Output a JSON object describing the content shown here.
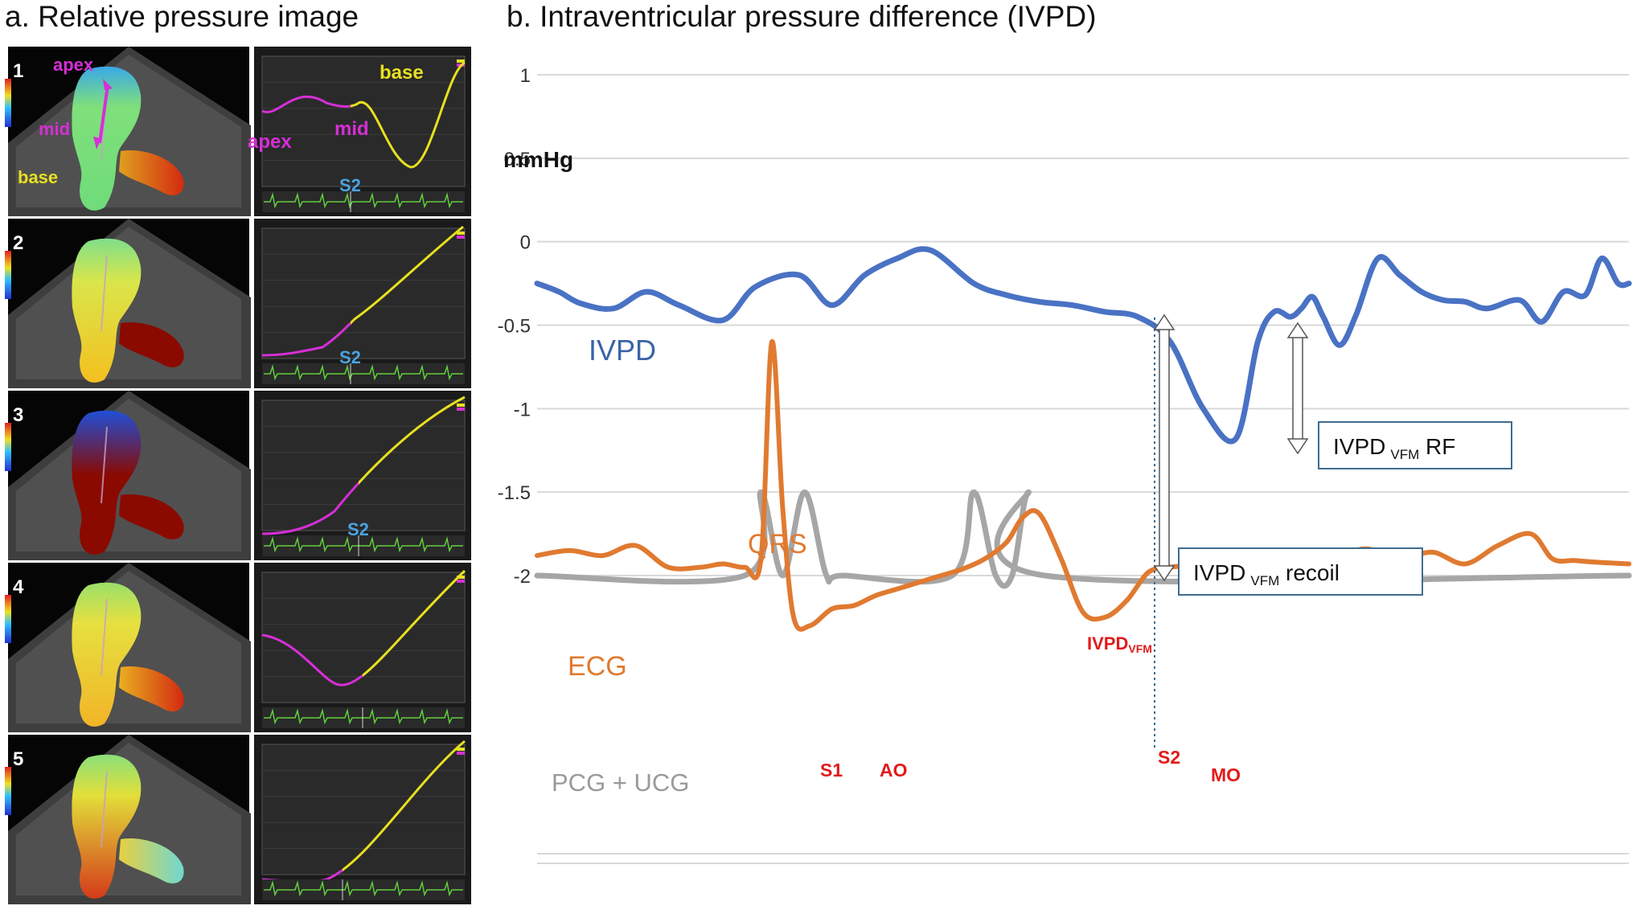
{
  "panel_a": {
    "title": "a. Relative pressure image",
    "frames": [
      {
        "number": "1",
        "labels": {
          "apex": "apex",
          "mid": "mid",
          "base": "base"
        },
        "curve_labels": {
          "apex": "apex",
          "mid": "mid",
          "base": "base"
        },
        "marker": "S2"
      },
      {
        "number": "2",
        "marker": "S2"
      },
      {
        "number": "3",
        "marker": "S2"
      },
      {
        "number": "4"
      },
      {
        "number": "5"
      }
    ],
    "colors": {
      "segment_apex_mid": "#d62fd6",
      "segment_base": "#e8e020",
      "ecg_strip": "#5fd13a",
      "marker": "#4aa3e0"
    }
  },
  "panel_b": {
    "title": "b. Intraventricular pressure difference (IVPD)",
    "unit_label": "mmHg",
    "series_labels": {
      "ivpd": "IVPD",
      "qrs": "QRS",
      "ecg": "ECG",
      "pcg": "PCG + UCG"
    },
    "event_labels": {
      "s1": "S1",
      "ao": "AO",
      "s2": "S2",
      "mo": "MO",
      "ivpd_vfm_main": "IVPD",
      "ivpd_vfm_sub": "VFM"
    },
    "boxes": {
      "rf": {
        "main": "IVPD",
        "sub": "VFM",
        "suffix": " RF"
      },
      "recoil": {
        "main": "IVPD",
        "sub": "VFM",
        "suffix": " recoil"
      }
    },
    "colors": {
      "ivpd": "#4a72c4",
      "ecg": "#e07a30",
      "pcg": "#a6a6a6",
      "event_red": "#e11b1b",
      "box_border": "#3f6c8f",
      "grid": "#d9d9d9"
    }
  },
  "chart_data": {
    "type": "line",
    "title": "Intraventricular pressure difference (IVPD)",
    "ylabel": "mmHg",
    "ylim": [
      -2,
      1
    ],
    "yticks": [
      1,
      0.5,
      0,
      -0.5,
      -1,
      -1.5,
      -2
    ],
    "xlim": [
      0,
      100
    ],
    "grid": true,
    "series": [
      {
        "name": "IVPD",
        "x": [
          0,
          2,
          4,
          7,
          10,
          13,
          17,
          20,
          24,
          27,
          30,
          33,
          36,
          40,
          43,
          46,
          49,
          52,
          55,
          58,
          61,
          64,
          66,
          67.5,
          69,
          70,
          71,
          72,
          73.5,
          75,
          77,
          79,
          81,
          83,
          85,
          87,
          90,
          92,
          94,
          96,
          97.5,
          99,
          100
        ],
        "y": [
          -0.25,
          -0.3,
          -0.37,
          -0.4,
          -0.3,
          -0.38,
          -0.47,
          -0.27,
          -0.2,
          -0.38,
          -0.2,
          -0.1,
          -0.05,
          -0.25,
          -0.32,
          -0.36,
          -0.38,
          -0.42,
          -0.45,
          -0.6,
          -1.0,
          -1.18,
          -0.6,
          -0.42,
          -0.45,
          -0.4,
          -0.33,
          -0.45,
          -0.62,
          -0.44,
          -0.1,
          -0.2,
          -0.3,
          -0.35,
          -0.36,
          -0.4,
          -0.35,
          -0.48,
          -0.3,
          -0.32,
          -0.1,
          -0.25,
          -0.25
        ]
      },
      {
        "name": "ECG",
        "x": [
          0,
          3,
          6,
          9,
          12,
          15,
          17,
          19,
          20.5,
          21.5,
          22.5,
          23.5,
          25,
          27,
          29,
          31,
          33,
          35,
          37,
          39,
          41,
          43,
          44.5,
          46,
          48,
          50,
          52,
          54,
          56,
          58,
          60,
          62,
          64,
          66,
          68,
          70,
          73,
          76,
          79,
          82,
          85,
          88,
          91,
          93,
          95,
          97,
          100
        ],
        "y": [
          -1.88,
          -1.85,
          -1.88,
          -1.82,
          -1.95,
          -1.95,
          -1.93,
          -1.95,
          -1.9,
          -0.6,
          -1.6,
          -2.25,
          -2.3,
          -2.2,
          -2.18,
          -2.12,
          -2.08,
          -2.04,
          -2.0,
          -1.96,
          -1.9,
          -1.8,
          -1.65,
          -1.63,
          -1.9,
          -2.22,
          -2.25,
          -2.15,
          -1.98,
          -1.95,
          -1.94,
          -1.93,
          -1.9,
          -1.87,
          -1.88,
          -1.86,
          -1.88,
          -1.84,
          -1.9,
          -1.86,
          -1.93,
          -1.82,
          -1.75,
          -1.9,
          -1.91,
          -1.92,
          -1.93
        ]
      },
      {
        "name": "PCG + UCG",
        "x": [
          0,
          19,
          20.5,
          22.5,
          24.5,
          26.5,
          28,
          38,
          40,
          42,
          43.5,
          45,
          46.5,
          100
        ],
        "y": [
          -2,
          -2,
          -1.5,
          -2,
          -1.5,
          -2,
          -2,
          -2,
          -1.5,
          -2,
          -2,
          -1.5,
          -2,
          -2
        ]
      }
    ]
  }
}
